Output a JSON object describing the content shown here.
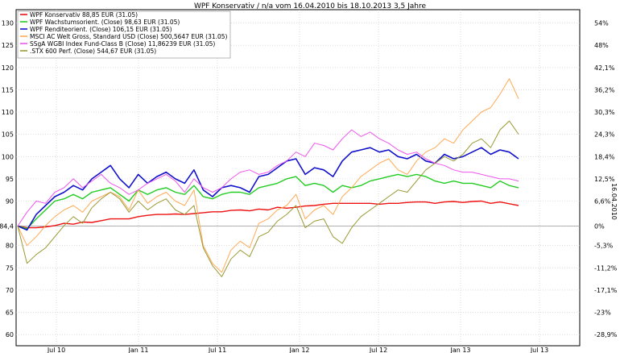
{
  "chart_data": {
    "type": "line",
    "title": "WPF Konservativ / n/a vom 16.04.2010 bis 18.10.2013 3,5 Jahre",
    "x_ticks": [
      "Jul 10",
      "Jan 11",
      "Jul 11",
      "Jan 12",
      "Jul 12",
      "Jan 13",
      "Jul 13"
    ],
    "y_left_ticks": [
      "130",
      "125",
      "120",
      "115",
      "110",
      "105",
      "100",
      "95",
      "90",
      "84,4",
      "80",
      "75",
      "70",
      "65",
      "60"
    ],
    "y_right_ticks": [
      "54%",
      "48%",
      "42,1%",
      "36,2%",
      "30,3%",
      "24,3%",
      "18,4%",
      "12,5%",
      "6,6%",
      "0%",
      "-5,3%",
      "-11,2%",
      "-17,1%",
      "-23%",
      "-28,9%"
    ],
    "right_axis_label": "16.04.2010",
    "grid": true,
    "legend_position": "top-left",
    "ylim": [
      57.5,
      133
    ],
    "baseline": 84.4,
    "series": [
      {
        "name": "WPF Konservativ 88,85 EUR (31.05)",
        "color": "#ee1111",
        "values": [
          84.4,
          84.0,
          84.0,
          84.2,
          84.5,
          85.0,
          84.8,
          85.3,
          85.2,
          85.6,
          86.0,
          86.0,
          86.0,
          86.5,
          86.8,
          87.0,
          87.0,
          87.1,
          87.0,
          87.2,
          87.4,
          87.6,
          87.6,
          87.9,
          88.0,
          87.8,
          88.2,
          88.0,
          88.6,
          88.4,
          88.6,
          88.9,
          89.0,
          89.3,
          89.5,
          89.5,
          89.5,
          89.5,
          89.5,
          89.3,
          89.5,
          89.5,
          89.7,
          89.8,
          89.8,
          89.5,
          89.8,
          89.9,
          89.7,
          89.9,
          90.0,
          89.5,
          89.8,
          89.4,
          89.0
        ]
      },
      {
        "name": "WPF Wachstumsorient. (Close) 98,63 EUR (31.05)",
        "color": "#22cc22",
        "values": [
          84.4,
          83.8,
          86.0,
          88.0,
          90.0,
          90.5,
          91.5,
          90.5,
          92.0,
          92.5,
          93.0,
          91.5,
          90.0,
          92.5,
          91.5,
          92.5,
          93.0,
          92.0,
          91.5,
          93.5,
          91.0,
          90.5,
          91.5,
          92.0,
          92.0,
          91.5,
          93.0,
          93.5,
          94.0,
          95.0,
          95.5,
          93.5,
          94.0,
          93.5,
          92.0,
          93.5,
          93.0,
          93.5,
          94.5,
          95.0,
          95.5,
          96.0,
          95.5,
          96.0,
          95.5,
          94.5,
          94.0,
          94.5,
          94.0,
          94.0,
          93.5,
          93.0,
          94.5,
          93.5,
          93.0
        ]
      },
      {
        "name": "WPF Renditeorient. (Close) 106,15 EUR (31.05)",
        "color": "#1111cc",
        "values": [
          84.4,
          83.5,
          87.0,
          89.0,
          91.0,
          92.0,
          93.5,
          92.5,
          95.0,
          96.5,
          98.0,
          95.0,
          93.0,
          96.0,
          94.0,
          95.5,
          96.5,
          95.0,
          94.0,
          97.0,
          92.5,
          91.0,
          93.0,
          93.5,
          93.0,
          92.0,
          95.5,
          96.0,
          97.5,
          99.0,
          99.5,
          96.0,
          97.5,
          97.0,
          95.5,
          99.0,
          101.0,
          101.5,
          102.0,
          101.0,
          101.5,
          100.0,
          99.5,
          100.5,
          99.0,
          98.5,
          100.5,
          99.5,
          100.0,
          101.0,
          102.0,
          100.5,
          101.5,
          101.0,
          99.5
        ]
      },
      {
        "name": "MSCI AC Welt Gross, Standard USD (Close) 500,5647 EUR (31.05)",
        "color": "#ffaa55",
        "values": [
          84.4,
          80.0,
          82.0,
          84.5,
          86.5,
          88.0,
          89.0,
          87.5,
          90.0,
          91.0,
          92.0,
          91.0,
          88.0,
          92.5,
          89.5,
          91.0,
          92.0,
          90.0,
          89.0,
          92.5,
          80.0,
          76.0,
          74.0,
          79.0,
          81.0,
          79.5,
          85.0,
          86.0,
          88.0,
          89.0,
          91.5,
          86.0,
          88.0,
          89.0,
          87.0,
          91.0,
          93.0,
          95.5,
          97.0,
          98.5,
          99.5,
          97.0,
          96.0,
          99.0,
          101.0,
          102.0,
          104.0,
          103.0,
          106.0,
          108.0,
          110.0,
          111.0,
          114.0,
          117.5,
          113.0
        ]
      },
      {
        "name": "SSgA WGBI Index Fund-Class B (Close) 11,86239 EUR (31.05)",
        "color": "#ee55ee",
        "values": [
          84.4,
          87.5,
          90.0,
          89.5,
          92.0,
          93.0,
          95.0,
          93.0,
          94.5,
          96.0,
          94.0,
          93.0,
          91.5,
          92.5,
          94.0,
          95.0,
          96.0,
          94.5,
          92.0,
          95.0,
          93.0,
          92.0,
          93.0,
          95.0,
          96.5,
          97.0,
          96.0,
          96.5,
          98.0,
          99.0,
          101.0,
          100.0,
          103.0,
          102.5,
          101.5,
          104.0,
          106.0,
          104.5,
          105.5,
          104.0,
          103.0,
          101.5,
          100.5,
          101.0,
          99.5,
          98.5,
          98.0,
          97.0,
          96.5,
          96.5,
          96.0,
          95.5,
          95.0,
          95.0,
          94.5
        ]
      },
      {
        "name": ".STX 600 Perf. (Close) 544,67 EUR (31.05)",
        "color": "#999933",
        "values": [
          84.4,
          76.0,
          78.0,
          79.5,
          82.0,
          84.5,
          86.5,
          85.0,
          88.5,
          90.5,
          92.0,
          90.5,
          87.5,
          90.0,
          88.0,
          89.5,
          90.5,
          88.0,
          87.0,
          89.0,
          79.5,
          75.5,
          73.0,
          77.0,
          79.0,
          77.5,
          82.0,
          83.0,
          85.5,
          87.0,
          89.0,
          84.0,
          85.5,
          86.0,
          82.0,
          80.5,
          84.0,
          86.5,
          88.0,
          89.5,
          91.0,
          92.5,
          92.0,
          94.5,
          97.0,
          98.5,
          100.0,
          99.0,
          100.5,
          103.0,
          104.0,
          102.0,
          106.0,
          108.0,
          105.0
        ]
      }
    ]
  }
}
